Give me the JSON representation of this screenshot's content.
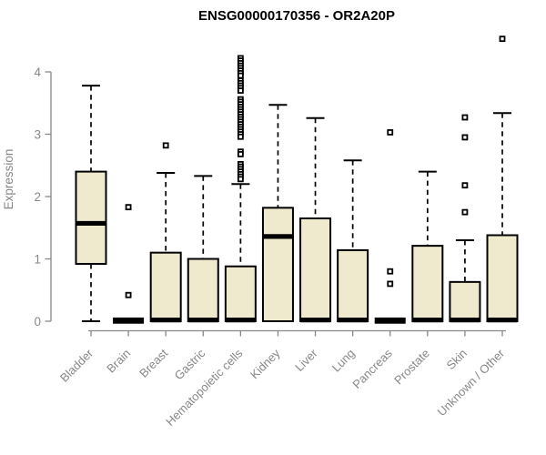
{
  "chart_data": {
    "type": "boxplot",
    "title": "ENSG00000170356 - OR2A20P",
    "ylabel": "Expression",
    "xlabel": "",
    "ylim": [
      0,
      4.6
    ],
    "yticks": [
      0,
      1,
      2,
      3,
      4
    ],
    "grid": false,
    "legend": "none",
    "colors": {
      "box_fill": "#EFE9CE",
      "box_stroke": "#000000",
      "median": "#000000",
      "axis": "#878787",
      "tick_label": "#878787",
      "title": "#000000",
      "background": "#ffffff"
    },
    "categories": [
      "Bladder",
      "Brain",
      "Breast",
      "Gastric",
      "Hematopoietic cells",
      "Kidney",
      "Liver",
      "Lung",
      "Pancreas",
      "Prostate",
      "Skin",
      "Unknown / Other"
    ],
    "boxes": [
      {
        "category": "Bladder",
        "low": 0,
        "q1": 0.92,
        "median": 1.57,
        "q3": 2.4,
        "high": 3.78,
        "outliers": []
      },
      {
        "category": "Brain",
        "low": 0,
        "q1": 0,
        "median": 0.01,
        "q3": 0.01,
        "high": 0.01,
        "outliers": [
          1.83,
          0.42
        ]
      },
      {
        "category": "Breast",
        "low": 0,
        "q1": 0,
        "median": 0.02,
        "q3": 1.1,
        "high": 2.38,
        "outliers": [
          2.82
        ]
      },
      {
        "category": "Gastric",
        "low": 0,
        "q1": 0,
        "median": 0.02,
        "q3": 1.0,
        "high": 2.33,
        "outliers": []
      },
      {
        "category": "Hematopoietic cells",
        "low": 0,
        "q1": 0,
        "median": 0.02,
        "q3": 0.88,
        "high": 2.2,
        "outliers": [
          4.22,
          4.18,
          4.14,
          4.1,
          4.06,
          4.02,
          3.98,
          3.94,
          3.86,
          3.82,
          3.78,
          3.74,
          3.7,
          3.56,
          3.52,
          3.48,
          3.44,
          3.4,
          3.36,
          3.32,
          3.28,
          3.24,
          3.2,
          3.16,
          3.12,
          3.08,
          3.04,
          3.0,
          2.96,
          2.72,
          2.68,
          2.52,
          2.48,
          2.44,
          2.4,
          2.36,
          2.32,
          2.28
        ]
      },
      {
        "category": "Kidney",
        "low": 0,
        "q1": 0,
        "median": 1.36,
        "q3": 1.82,
        "high": 3.47,
        "outliers": []
      },
      {
        "category": "Liver",
        "low": 0,
        "q1": 0,
        "median": 0.02,
        "q3": 1.65,
        "high": 3.26,
        "outliers": []
      },
      {
        "category": "Lung",
        "low": 0,
        "q1": 0,
        "median": 0.02,
        "q3": 1.14,
        "high": 2.58,
        "outliers": []
      },
      {
        "category": "Pancreas",
        "low": 0,
        "q1": 0,
        "median": 0.01,
        "q3": 0.01,
        "high": 0.01,
        "outliers": [
          3.03,
          0.8,
          0.6
        ]
      },
      {
        "category": "Prostate",
        "low": 0,
        "q1": 0,
        "median": 0.02,
        "q3": 1.21,
        "high": 2.4,
        "outliers": []
      },
      {
        "category": "Skin",
        "low": 0,
        "q1": 0,
        "median": 0.02,
        "q3": 0.63,
        "high": 1.3,
        "outliers": [
          3.27,
          2.95,
          2.18,
          1.75
        ]
      },
      {
        "category": "Unknown / Other",
        "low": 0,
        "q1": 0,
        "median": 0.02,
        "q3": 1.38,
        "high": 3.34,
        "outliers": [
          4.53
        ]
      }
    ]
  }
}
